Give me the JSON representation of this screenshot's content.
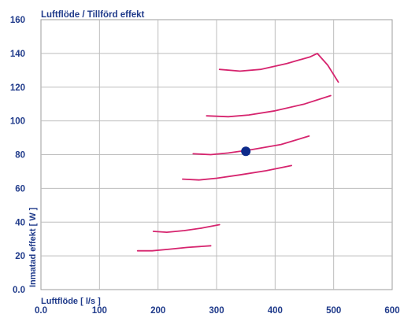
{
  "chart_data": {
    "type": "line",
    "title": "Luftflöde / Tillförd effekt",
    "xlabel": "Luftflöde [ l/s ]",
    "ylabel": "Inmatad effekt [ W ]",
    "xlim": [
      0,
      600
    ],
    "ylim": [
      0,
      160
    ],
    "xticks": [
      "0.0",
      "100",
      "200",
      "300",
      "400",
      "500",
      "600"
    ],
    "yticks": [
      "0.0",
      "20",
      "40",
      "60",
      "80",
      "100",
      "120",
      "140",
      "160"
    ],
    "grid": true,
    "curve_color": "#d6246e",
    "marker_color": "#0d2a8a",
    "series": [
      {
        "x": [
          165,
          190,
          220,
          250,
          290
        ],
        "y": [
          23,
          23,
          24,
          25,
          26
        ]
      },
      {
        "x": [
          192,
          215,
          245,
          275,
          305
        ],
        "y": [
          34.5,
          34,
          35,
          36.5,
          38.5
        ]
      },
      {
        "x": [
          242,
          270,
          300,
          340,
          385,
          428
        ],
        "y": [
          65.5,
          65,
          66,
          68,
          70.5,
          73.5
        ]
      },
      {
        "x": [
          260,
          290,
          320,
          360,
          410,
          458
        ],
        "y": [
          80.5,
          80,
          81,
          83,
          86,
          91
        ]
      },
      {
        "x": [
          283,
          320,
          355,
          400,
          450,
          495
        ],
        "y": [
          103,
          102.5,
          103.5,
          106,
          110,
          115
        ]
      },
      {
        "x": [
          305,
          340,
          375,
          420,
          460,
          472,
          490,
          508
        ],
        "y": [
          130.5,
          129.5,
          130.5,
          134,
          138,
          140,
          133,
          123
        ]
      }
    ],
    "points": [
      {
        "x": 350,
        "y": 82
      }
    ]
  }
}
